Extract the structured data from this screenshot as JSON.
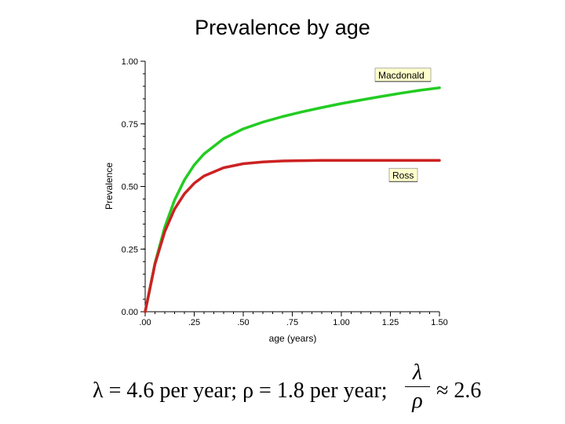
{
  "page": {
    "title": "Prevalence by age",
    "formula": {
      "lhs": "λ = 4.6 per year; ρ = 1.8 per year;",
      "frac_num": "λ",
      "frac_den": "ρ",
      "rhs": "≈ 2.6"
    }
  },
  "chart_data": {
    "type": "line",
    "title": "",
    "xlabel": "age (years)",
    "ylabel": "Prevalence",
    "xlim": [
      0,
      1.5
    ],
    "ylim": [
      0,
      1.0
    ],
    "x_ticks": [
      0,
      0.25,
      0.5,
      0.75,
      1.0,
      1.25,
      1.5
    ],
    "x_tick_labels": [
      ".00",
      ".25",
      ".50",
      ".75",
      "1.00",
      "1.25",
      "1.50"
    ],
    "y_ticks": [
      0,
      0.25,
      0.5,
      0.75,
      1.0
    ],
    "y_tick_labels": [
      "0.00",
      "0.25",
      "0.50",
      "0.75",
      "1.00"
    ],
    "grid": false,
    "series": [
      {
        "name": "Macdonald",
        "color": "#22cc22",
        "x": [
          0,
          0.05,
          0.1,
          0.15,
          0.2,
          0.25,
          0.3,
          0.4,
          0.5,
          0.6,
          0.7,
          0.8,
          0.9,
          1.0,
          1.1,
          1.2,
          1.3,
          1.4,
          1.5
        ],
        "values": [
          0,
          0.194,
          0.338,
          0.446,
          0.526,
          0.586,
          0.63,
          0.691,
          0.73,
          0.757,
          0.779,
          0.798,
          0.815,
          0.831,
          0.845,
          0.859,
          0.872,
          0.884,
          0.894
        ]
      },
      {
        "name": "Ross",
        "color": "#cc2222",
        "x": [
          0,
          0.05,
          0.1,
          0.15,
          0.2,
          0.25,
          0.3,
          0.4,
          0.5,
          0.6,
          0.7,
          0.8,
          0.9,
          1.0,
          1.1,
          1.2,
          1.3,
          1.4,
          1.5
        ],
        "values": [
          0,
          0.19,
          0.32,
          0.41,
          0.471,
          0.513,
          0.542,
          0.575,
          0.591,
          0.598,
          0.602,
          0.603,
          0.604,
          0.604,
          0.604,
          0.604,
          0.604,
          0.604,
          0.604
        ]
      }
    ],
    "legend": "labels-at-line-ends"
  }
}
